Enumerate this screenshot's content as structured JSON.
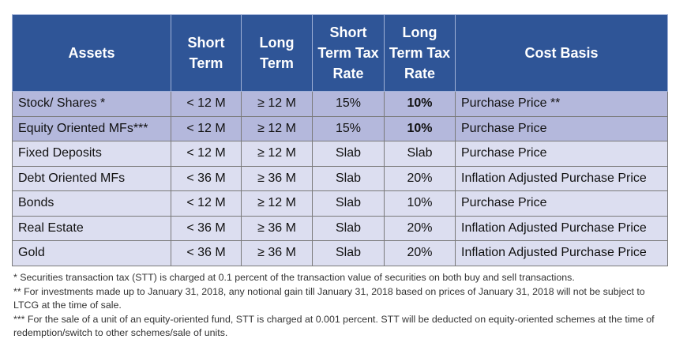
{
  "table": {
    "header": [
      "Assets",
      "Short Term",
      "Long Term",
      "Short Term Tax Rate",
      "Long Term Tax Rate",
      "Cost Basis"
    ],
    "rows": [
      [
        "Stock/ Shares *",
        "< 12 M",
        "≥ 12 M",
        "15%",
        "10%",
        "Purchase Price **"
      ],
      [
        "Equity Oriented MFs***",
        "< 12 M",
        "≥ 12 M",
        "15%",
        "10%",
        "Purchase Price"
      ],
      [
        "Fixed Deposits",
        "< 12 M",
        "≥ 12 M",
        "Slab",
        "Slab",
        "Purchase Price"
      ],
      [
        "Debt Oriented MFs",
        "< 36 M",
        "≥ 36 M",
        "Slab",
        "20%",
        "Inflation Adjusted Purchase Price"
      ],
      [
        "Bonds",
        "< 12 M",
        "≥ 12 M",
        "Slab",
        "10%",
        "Purchase Price"
      ],
      [
        "Real Estate",
        "< 36 M",
        "≥ 36 M",
        "Slab",
        "20%",
        "Inflation Adjusted Purchase Price"
      ],
      [
        "Gold",
        "< 36 M",
        "≥ 36 M",
        "Slab",
        "20%",
        "Inflation Adjusted Purchase Price"
      ]
    ]
  },
  "footnotes": [
    "* Securities transaction tax (STT) is charged at 0.1 percent of the transaction value of securities on both buy and sell transactions.",
    "** For investments made up to January 31, 2018, any notional gain till January 31, 2018 based on prices of January 31, 2018 will not be subject to LTCG at the time of sale.",
    "*** For the sale of a unit of an equity-oriented fund, STT is charged at 0.001 percent. STT will be deducted on equity-oriented schemes at the time of redemption/switch to other schemes/sale of units."
  ]
}
